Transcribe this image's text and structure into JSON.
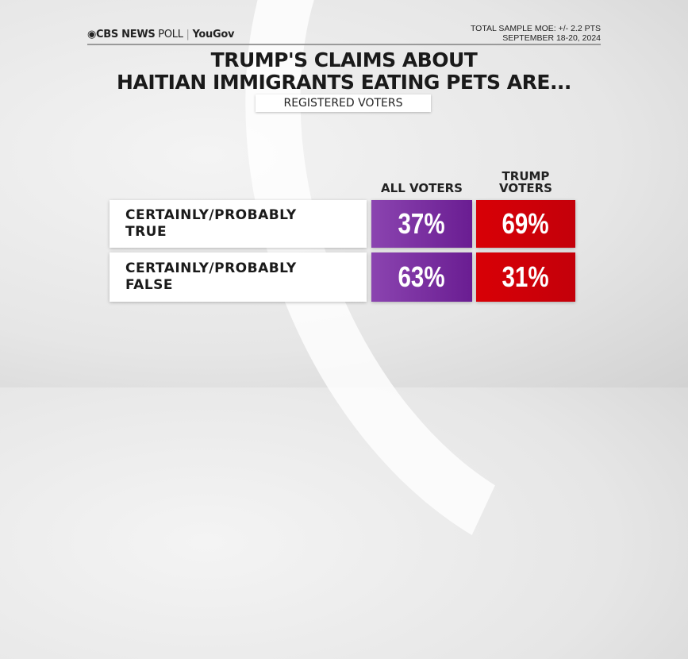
{
  "header": {
    "logo_brand": "CBS NEWS",
    "logo_poll": "POLL",
    "logo_partner": "YouGov",
    "moe": "TOTAL SAMPLE MOE: +/- 2.2 PTS",
    "dates": "SEPTEMBER 18-20, 2024"
  },
  "title": {
    "line1": "TRUMP'S CLAIMS ABOUT",
    "line2": "HAITIAN IMMIGRANTS EATING PETS ARE..."
  },
  "subtitle": "REGISTERED VOTERS",
  "colors": {
    "all_voters": "#7a2fa2",
    "trump_voters": "#d20008"
  },
  "chart_data": {
    "type": "table",
    "columns": [
      {
        "line1": "",
        "line2": "ALL VOTERS"
      },
      {
        "line1": "TRUMP",
        "line2": "VOTERS"
      }
    ],
    "rows": [
      {
        "line1": "CERTAINLY/PROBABLY",
        "line2": "TRUE",
        "values": [
          "37%",
          "69%"
        ]
      },
      {
        "line1": "CERTAINLY/PROBABLY",
        "line2": "FALSE",
        "values": [
          "63%",
          "31%"
        ]
      }
    ]
  }
}
